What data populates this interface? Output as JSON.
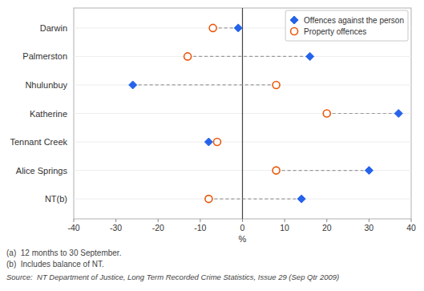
{
  "chart_data": {
    "type": "dot",
    "orientation": "horizontal",
    "categories": [
      "Darwin",
      "Palmerston",
      "Nhulunbuy",
      "Katherine",
      "Tennant Creek",
      "Alice Springs",
      "NT(b)"
    ],
    "series": [
      {
        "name": "Offences against the person",
        "marker": "diamond",
        "values": [
          -1,
          16,
          -26,
          37,
          -8,
          30,
          14
        ]
      },
      {
        "name": "Property offences",
        "marker": "circle",
        "values": [
          -7,
          -13,
          8,
          20,
          -6,
          8,
          -8
        ]
      }
    ],
    "xlim": [
      -40,
      40
    ],
    "xticks": [
      -40,
      -30,
      -20,
      -10,
      0,
      10,
      20,
      30,
      40
    ],
    "xlabel": "%",
    "grid": false,
    "legend": "upper right",
    "annotations": [
      "(a)  12 months to 30 September.",
      "(b)  Includes balance of NT.",
      "Source:  NT Department of Justice, Long Term Recorded Crime Statistics, Issue 29 (Sep Qtr 2009)"
    ]
  }
}
